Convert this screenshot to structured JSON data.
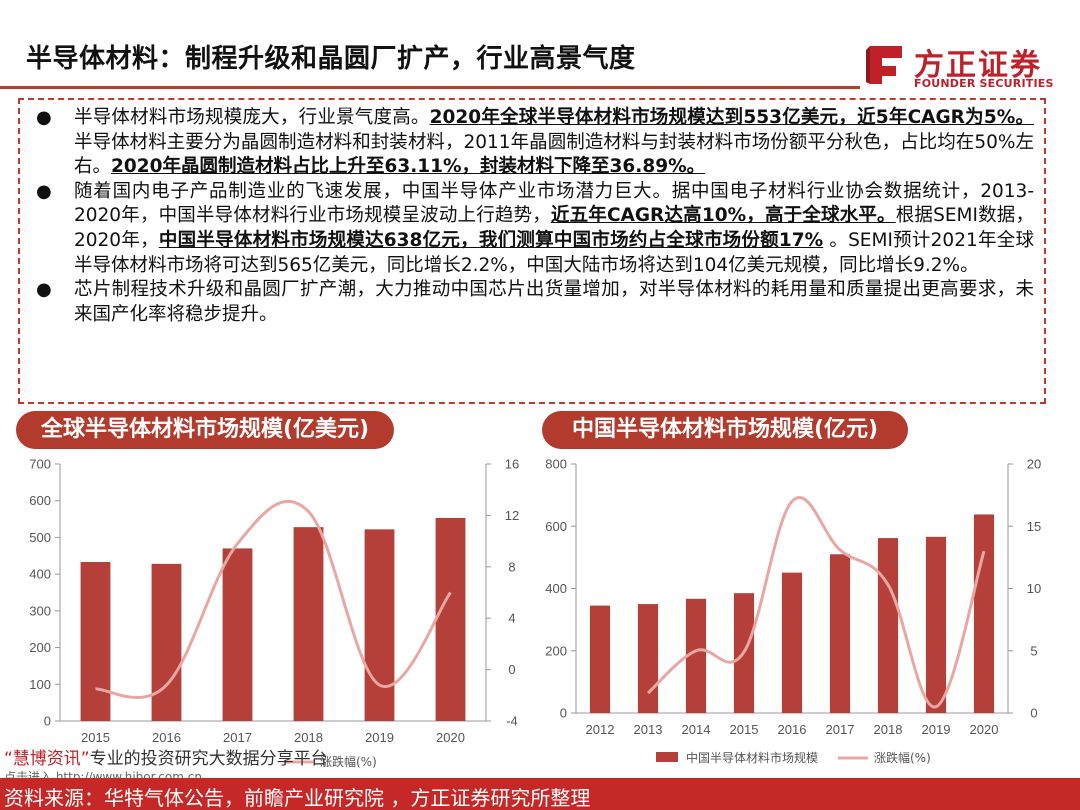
{
  "header": {
    "title": "半导体材料：制程升级和晶圆厂扩产，行业高景气度",
    "logo_cn": "方正证券",
    "logo_en": "FOUNDER SECURITIES"
  },
  "bullets": [
    {
      "segments": [
        {
          "text": "半导体材料市场规模庞大，行业景气度高。",
          "bold": false
        },
        {
          "text": "2020年全球半导体材料市场规模达到553亿美元，近5年CAGR为5%。",
          "bold": true
        },
        {
          "text": "半导体材料主要分为晶圆制造材料和封装材料，2011年晶圆制造材料与封装材料市场份额平分秋色，占比均在50%左右。",
          "bold": false
        },
        {
          "text": "2020年晶圆制造材料占比上升至63.11%，封装材料下降至36.89%。",
          "bold": true
        }
      ]
    },
    {
      "segments": [
        {
          "text": "随着国内电子产品制造业的飞速发展，中国半导体产业市场潜力巨大。据中国电子材料行业协会数据统计，2013-2020年，中国半导体材料行业市场规模呈波动上行趋势，",
          "bold": false
        },
        {
          "text": "近五年CAGR达高10%，高于全球水平。",
          "bold": true
        },
        {
          "text": "根据SEMI数据，2020年，",
          "bold": false
        },
        {
          "text": "中国半导体材料市场规模达638亿元，我们测算中国市场约占全球市场份额17%",
          "bold": true
        },
        {
          "text": " 。SEMI预计2021年全球半导体材料市场将可达到565亿美元，同比增长2.2%，中国大陆市场将达到104亿美元规模，同比增长9.2%。",
          "bold": false
        }
      ]
    },
    {
      "segments": [
        {
          "text": "芯片制程技术升级和晶圆厂扩产潮，大力推动中国芯片出货量增加，对半导体材料的耗用量和质量提出更高要求，未来国产化率将稳步提升。",
          "bold": false
        }
      ]
    }
  ],
  "bullet_char": "●",
  "chart_data": [
    {
      "type": "bar",
      "title": "全球半导体材料市场规模(亿美元)",
      "categories": [
        "2015",
        "2016",
        "2017",
        "2018",
        "2019",
        "2020"
      ],
      "series": [
        {
          "values": [
            433,
            428,
            470,
            528,
            522,
            553
          ],
          "axis": "left",
          "render": "bar"
        },
        {
          "name": "涨跌幅(%)",
          "values": [
            -1.5,
            -1.2,
            9.8,
            12.3,
            -1.2,
            6.0
          ],
          "axis": "right",
          "render": "smooth-line"
        }
      ],
      "ylim_left": [
        0,
        700
      ],
      "yticks_left": [
        "0",
        "100",
        "200",
        "300",
        "400",
        "500",
        "600",
        "700"
      ],
      "ylim_right": [
        -4,
        16
      ],
      "yticks_right": [
        "-4",
        "0",
        "4",
        "8",
        "12",
        "16"
      ],
      "grid": false,
      "legend_position": "bottom",
      "colors": {
        "bar": "#b5403a",
        "line": "#e8a7a2"
      }
    },
    {
      "type": "bar",
      "title": "中国半导体材料市场规模(亿元)",
      "categories": [
        "2012",
        "2013",
        "2014",
        "2015",
        "2016",
        "2017",
        "2018",
        "2019",
        "2020"
      ],
      "series": [
        {
          "name": "中国半导体材料市场规模",
          "values": [
            345,
            350,
            367,
            385,
            451,
            510,
            562,
            566,
            638
          ],
          "axis": "left",
          "render": "bar"
        },
        {
          "name": "涨跌幅(%)",
          "values": [
            null,
            1.6,
            5.0,
            4.9,
            17.0,
            13.1,
            10.3,
            0.5,
            13.0
          ],
          "axis": "right",
          "render": "smooth-line"
        }
      ],
      "ylim_left": [
        0,
        800
      ],
      "yticks_left": [
        "0",
        "200",
        "400",
        "600",
        "800"
      ],
      "ylim_right": [
        0,
        20
      ],
      "yticks_right": [
        "0",
        "5",
        "10",
        "15",
        "20"
      ],
      "grid": false,
      "legend_position": "bottom",
      "colors": {
        "bar": "#b5403a",
        "line": "#e8a7a2"
      }
    }
  ],
  "watermark": {
    "brand": "“慧博资讯”",
    "rest": "专业的投资研究大数据分享平台",
    "url": "点击进入 http://www.hibor.com.cn"
  },
  "footer": {
    "source": "资料来源：华特气体公告，前瞻产业研究院 ，方正证券研究所整理"
  }
}
